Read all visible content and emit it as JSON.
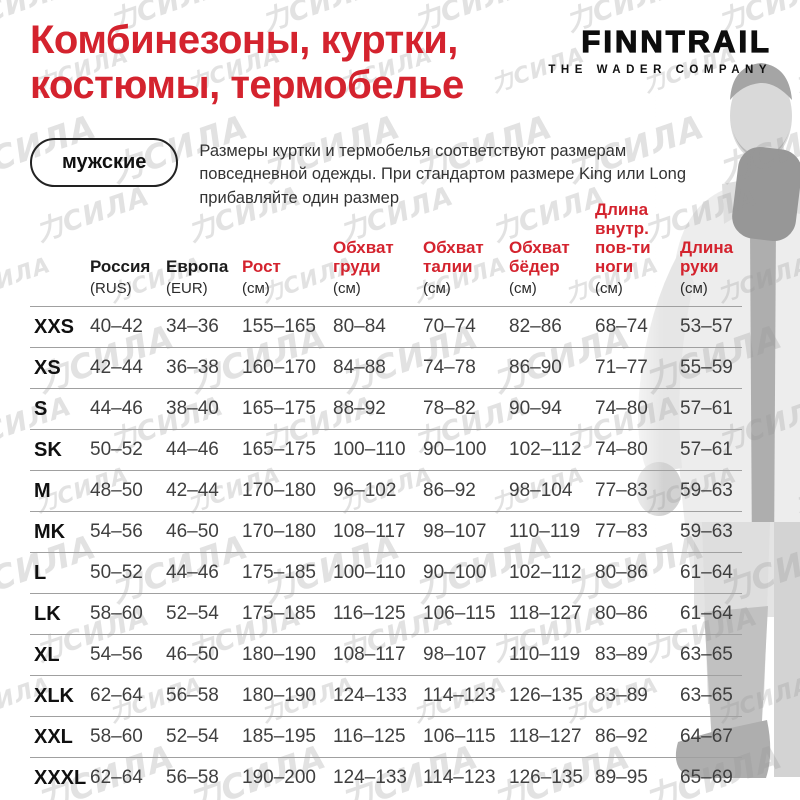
{
  "colors": {
    "accent": "#d4232e"
  },
  "watermark": {
    "text": "力СИЛА"
  },
  "header": {
    "title_line1": "Комбинезоны, куртки,",
    "title_line2": "костюмы, термобелье",
    "logo_name": "FINNTRAIL",
    "logo_tagline": "THE WADER COMPANY",
    "badge": "мужские",
    "description": "Размеры куртки и термобелья соответствуют размерам повседневной одежды. При стандартом размере King или Long прибавляйте один размер"
  },
  "table": {
    "columns": [
      {
        "label_lines": [
          "Россия"
        ],
        "sub": "(RUS)",
        "accent": false
      },
      {
        "label_lines": [
          "Европа"
        ],
        "sub": "(EUR)",
        "accent": false
      },
      {
        "label_lines": [
          "Рост"
        ],
        "sub": "(см)",
        "accent": true
      },
      {
        "label_lines": [
          "Обхват",
          "груди"
        ],
        "sub": "(см)",
        "accent": true
      },
      {
        "label_lines": [
          "Обхват",
          "талии"
        ],
        "sub": "(см)",
        "accent": true
      },
      {
        "label_lines": [
          "Обхват",
          "бёдер"
        ],
        "sub": "(см)",
        "accent": true
      },
      {
        "label_lines": [
          "Длина",
          "внутр.",
          "пов-ти",
          "ноги"
        ],
        "sub": "(см)",
        "accent": true
      },
      {
        "label_lines": [
          "Длина",
          "руки"
        ],
        "sub": "(см)",
        "accent": true
      }
    ],
    "rows": [
      {
        "size": "XXS",
        "values": [
          "40–42",
          "34–36",
          "155–165",
          "80–84",
          "70–74",
          "82–86",
          "68–74",
          "53–57"
        ]
      },
      {
        "size": "XS",
        "values": [
          "42–44",
          "36–38",
          "160–170",
          "84–88",
          "74–78",
          "86–90",
          "71–77",
          "55–59"
        ]
      },
      {
        "size": "S",
        "values": [
          "44–46",
          "38–40",
          "165–175",
          "88–92",
          "78–82",
          "90–94",
          "74–80",
          "57–61"
        ]
      },
      {
        "size": "SK",
        "values": [
          "50–52",
          "44–46",
          "165–175",
          "100–110",
          "90–100",
          "102–112",
          "74–80",
          "57–61"
        ]
      },
      {
        "size": "M",
        "values": [
          "48–50",
          "42–44",
          "170–180",
          "96–102",
          "86–92",
          "98–104",
          "77–83",
          "59–63"
        ]
      },
      {
        "size": "MK",
        "values": [
          "54–56",
          "46–50",
          "170–180",
          "108–117",
          "98–107",
          "110–119",
          "77–83",
          "59–63"
        ]
      },
      {
        "size": "L",
        "values": [
          "50–52",
          "44–46",
          "175–185",
          "100–110",
          "90–100",
          "102–112",
          "80–86",
          "61–64"
        ]
      },
      {
        "size": "LK",
        "values": [
          "58–60",
          "52–54",
          "175–185",
          "116–125",
          "106–115",
          "118–127",
          "80–86",
          "61–64"
        ]
      },
      {
        "size": "XL",
        "values": [
          "54–56",
          "46–50",
          "180–190",
          "108–117",
          "98–107",
          "110–119",
          "83–89",
          "63–65"
        ]
      },
      {
        "size": "XLK",
        "values": [
          "62–64",
          "56–58",
          "180–190",
          "124–133",
          "114–123",
          "126–135",
          "83–89",
          "63–65"
        ]
      },
      {
        "size": "XXL",
        "values": [
          "58–60",
          "52–54",
          "185–195",
          "116–125",
          "106–115",
          "118–127",
          "86–92",
          "64–67"
        ]
      },
      {
        "size": "XXXL",
        "values": [
          "62–64",
          "56–58",
          "190–200",
          "124–133",
          "114–123",
          "126–135",
          "89–95",
          "65–69"
        ]
      }
    ]
  }
}
